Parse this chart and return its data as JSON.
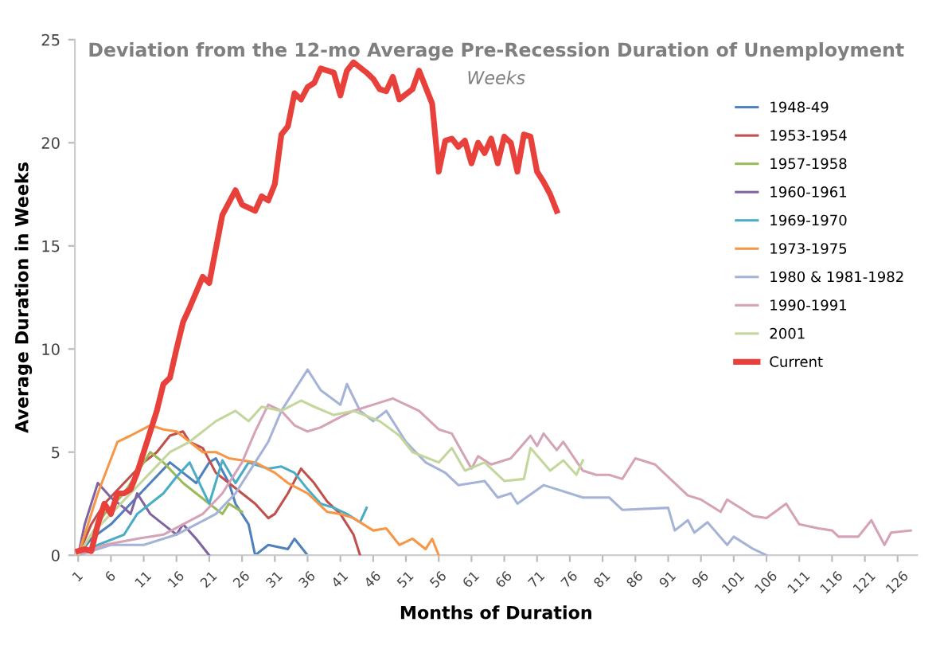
{
  "chart_data": {
    "type": "line",
    "title": "Deviation from the 12-mo Average Pre-Recession Duration of Unemployment",
    "subtitle": "Weeks",
    "xlabel": "Months of Duration",
    "ylabel": "Average Duration in Weeks",
    "xlim": [
      0.5,
      129
    ],
    "xticks": [
      1,
      6,
      11,
      16,
      21,
      26,
      31,
      36,
      41,
      46,
      51,
      56,
      61,
      66,
      71,
      76,
      81,
      86,
      91,
      96,
      101,
      106,
      111,
      116,
      121,
      126
    ],
    "ylim": [
      0,
      25
    ],
    "yticks": [
      0,
      5,
      10,
      15,
      20,
      25
    ],
    "grid": false,
    "legend": "right",
    "marker": "none",
    "line_style": "solid",
    "series": [
      {
        "name": "1948-49",
        "color": "#4f81bd",
        "x": [
          1,
          3,
          6,
          9,
          12,
          15,
          17,
          19,
          21,
          22,
          24,
          25,
          27,
          28,
          30,
          33,
          34,
          36
        ],
        "values": [
          0,
          0.8,
          1.5,
          2.5,
          3.5,
          4.5,
          4.0,
          3.5,
          4.5,
          4.7,
          3.5,
          2.5,
          1.5,
          0,
          0.5,
          0.3,
          0.8,
          0
        ]
      },
      {
        "name": "1953-1954",
        "color": "#c0504d",
        "x": [
          1,
          3,
          5,
          8,
          11,
          13,
          15,
          17,
          18,
          20,
          22,
          24,
          26,
          28,
          30,
          31,
          33,
          35,
          37,
          39,
          41,
          43,
          44
        ],
        "values": [
          0,
          1.5,
          2.5,
          3.5,
          4.5,
          5.0,
          5.8,
          6.0,
          5.5,
          5.2,
          4.0,
          3.5,
          3.0,
          2.5,
          1.8,
          2.0,
          3.0,
          4.2,
          3.5,
          2.6,
          2.0,
          1.0,
          0
        ]
      },
      {
        "name": "1957-1958",
        "color": "#9bbb59",
        "x": [
          1,
          3,
          5,
          8,
          10,
          12,
          14,
          17,
          19,
          21,
          23,
          24,
          25,
          26
        ],
        "values": [
          0,
          1.0,
          2.0,
          3.0,
          4.0,
          5.0,
          4.5,
          3.5,
          3.0,
          2.5,
          2.0,
          2.5,
          2.3,
          2.1
        ]
      },
      {
        "name": "1960-1961",
        "color": "#8064a2",
        "x": [
          1,
          2,
          4,
          6,
          8,
          9,
          10,
          12,
          14,
          16,
          17,
          19,
          21
        ],
        "values": [
          0,
          1.5,
          3.5,
          2.8,
          2.3,
          2.0,
          3.0,
          2.0,
          1.5,
          1.0,
          1.5,
          0.8,
          0
        ]
      },
      {
        "name": "1969-1970",
        "color": "#4bacc6",
        "x": [
          1,
          4,
          8,
          10,
          12,
          14,
          16,
          18,
          21,
          23,
          25,
          27,
          30,
          32,
          34,
          36,
          38,
          40,
          42,
          44,
          45
        ],
        "values": [
          0,
          0.5,
          1.0,
          2.0,
          2.5,
          3.0,
          3.8,
          4.5,
          2.5,
          4.6,
          3.5,
          4.5,
          4.2,
          4.3,
          4.0,
          3.2,
          2.5,
          2.3,
          2.0,
          1.6,
          2.3
        ]
      },
      {
        "name": "1973-1975",
        "color": "#f79646",
        "x": [
          1,
          2,
          4,
          7,
          9,
          12,
          14,
          16,
          18,
          20,
          22,
          24,
          26,
          28,
          31,
          33,
          36,
          39,
          41,
          43,
          46,
          48,
          50,
          52,
          54,
          55,
          56
        ],
        "values": [
          0,
          1.0,
          3.0,
          5.5,
          5.8,
          6.3,
          6.1,
          6.0,
          5.5,
          5.0,
          5.0,
          4.7,
          4.6,
          4.5,
          4.0,
          3.5,
          3.0,
          2.1,
          2.0,
          1.8,
          1.2,
          1.3,
          0.5,
          0.8,
          0.3,
          0.8,
          0
        ]
      },
      {
        "name": "1980 & 1981-1982",
        "color": "#a5b3d6",
        "x": [
          1,
          6,
          11,
          16,
          19,
          22,
          25,
          28,
          30,
          32,
          34,
          36,
          38,
          41,
          42,
          44,
          46,
          48,
          51,
          54,
          57,
          59,
          63,
          65,
          67,
          68,
          72,
          78,
          82,
          84,
          91,
          92,
          94,
          95,
          97,
          100,
          101,
          104,
          106
        ],
        "values": [
          0,
          0.5,
          0.5,
          1.0,
          1.5,
          2.0,
          3.0,
          4.5,
          5.5,
          7.0,
          8.0,
          9.0,
          8.0,
          7.3,
          8.3,
          7.0,
          6.5,
          7.0,
          5.5,
          4.5,
          4.0,
          3.4,
          3.6,
          2.8,
          3.0,
          2.5,
          3.4,
          2.8,
          2.8,
          2.2,
          2.3,
          1.2,
          1.7,
          1.1,
          1.6,
          0.5,
          0.9,
          0.3,
          0
        ]
      },
      {
        "name": "1990-1991",
        "color": "#d4a3b8",
        "x": [
          1,
          5,
          10,
          14,
          17,
          20,
          23,
          26,
          28,
          30,
          32,
          34,
          36,
          38,
          41,
          43,
          46,
          49,
          51,
          53,
          56,
          58,
          61,
          62,
          64,
          67,
          70,
          71,
          72,
          74,
          75,
          78,
          80,
          82,
          84,
          86,
          89,
          90,
          94,
          96,
          99,
          100,
          101,
          104,
          106,
          109,
          111,
          114,
          116,
          117,
          120,
          122,
          124,
          125,
          128
        ],
        "values": [
          0,
          0.5,
          0.8,
          1.0,
          1.5,
          2.0,
          3.0,
          4.5,
          6.0,
          7.3,
          7.0,
          6.3,
          6.0,
          6.2,
          6.7,
          7.0,
          7.3,
          7.6,
          7.3,
          7.0,
          6.1,
          5.9,
          4.2,
          4.8,
          4.4,
          4.7,
          5.8,
          5.3,
          5.9,
          5.1,
          5.5,
          4.1,
          3.9,
          3.9,
          3.7,
          4.7,
          4.4,
          4.1,
          2.9,
          2.7,
          2.1,
          2.7,
          2.5,
          1.9,
          1.8,
          2.5,
          1.5,
          1.3,
          1.2,
          0.9,
          0.9,
          1.7,
          0.5,
          1.1,
          1.2
        ]
      },
      {
        "name": "2001",
        "color": "#c3d69b",
        "x": [
          1,
          3,
          6,
          9,
          12,
          15,
          18,
          20,
          22,
          25,
          27,
          29,
          32,
          35,
          37,
          40,
          43,
          47,
          50,
          52,
          56,
          58,
          60,
          63,
          66,
          69,
          70,
          73,
          75,
          77,
          78
        ],
        "values": [
          0,
          1.0,
          2.0,
          3.0,
          4.0,
          5.0,
          5.5,
          6.0,
          6.5,
          7.0,
          6.5,
          7.2,
          7.0,
          7.5,
          7.2,
          6.8,
          7.0,
          6.5,
          5.8,
          5.0,
          4.5,
          5.2,
          4.1,
          4.5,
          3.6,
          3.7,
          5.2,
          4.1,
          4.6,
          3.9,
          4.6
        ]
      },
      {
        "name": "Current",
        "color": "#e8403a",
        "x": [
          1,
          2,
          3,
          4,
          5,
          6,
          7,
          8,
          9,
          10,
          11,
          12,
          13,
          14,
          15,
          16,
          17,
          18,
          20,
          21,
          23,
          25,
          26,
          28,
          29,
          30,
          31,
          32,
          33,
          34,
          35,
          36,
          37,
          38,
          40,
          41,
          42,
          43,
          45,
          46,
          47,
          48,
          49,
          50,
          52,
          53,
          55,
          56,
          57,
          58,
          59,
          60,
          61,
          62,
          63,
          64,
          65,
          66,
          67,
          68,
          69,
          70,
          71,
          72,
          73,
          74
        ],
        "values": [
          0.2,
          0.3,
          0.2,
          1.5,
          2.5,
          2.0,
          3.0,
          3.0,
          3.2,
          4.0,
          5.0,
          6.0,
          7.0,
          8.3,
          8.6,
          10.0,
          11.3,
          12.0,
          13.5,
          13.2,
          16.5,
          17.7,
          17.0,
          16.7,
          17.4,
          17.2,
          18.0,
          20.4,
          20.8,
          22.4,
          22.1,
          22.7,
          22.9,
          23.6,
          23.4,
          22.3,
          23.5,
          23.9,
          23.4,
          23.1,
          22.6,
          22.5,
          23.2,
          22.1,
          22.6,
          23.5,
          21.9,
          18.6,
          20.1,
          20.2,
          19.8,
          20.1,
          19.0,
          20.0,
          19.5,
          20.2,
          19.0,
          20.3,
          20.0,
          18.6,
          20.4,
          20.3,
          18.6,
          18.1,
          17.5,
          16.7
        ]
      }
    ]
  }
}
